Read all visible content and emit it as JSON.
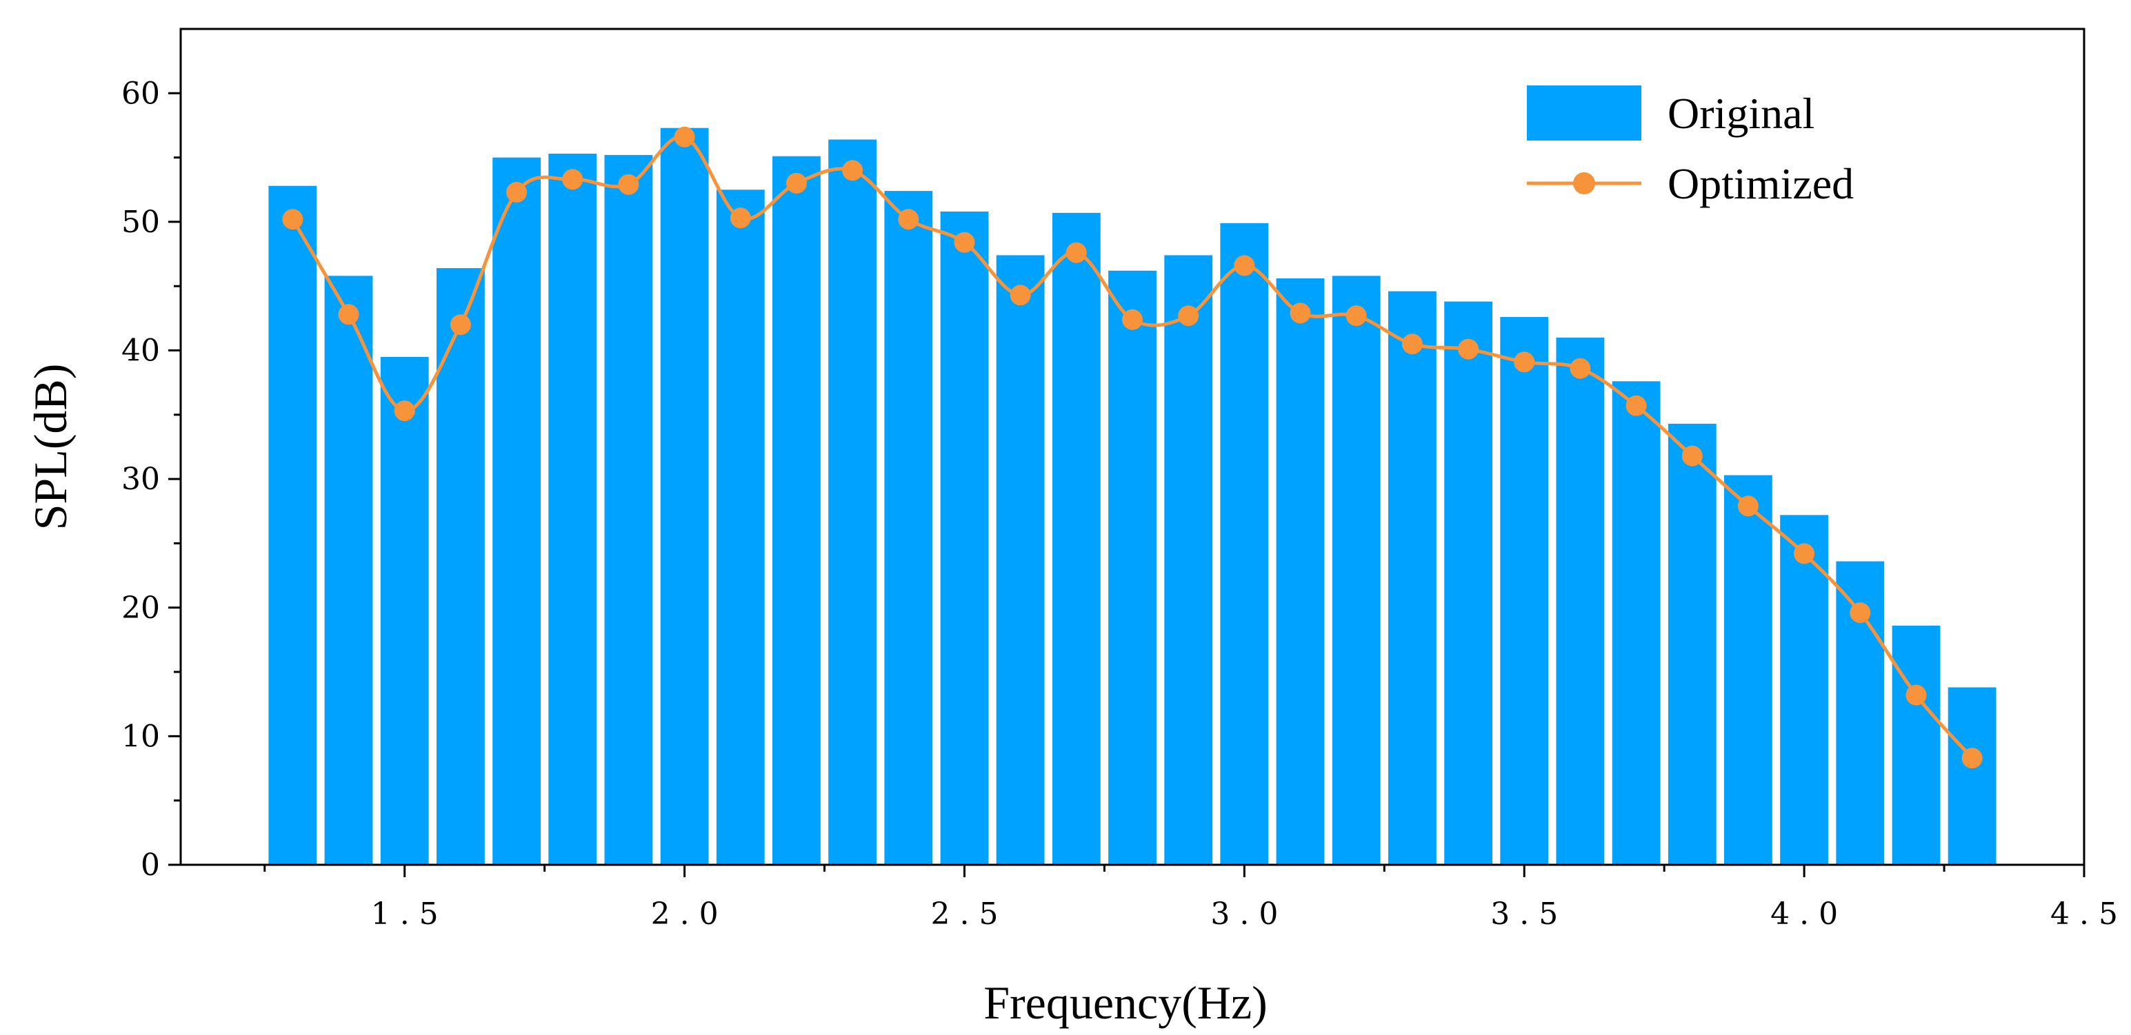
{
  "chart_data": {
    "type": "bar",
    "title": "",
    "xlabel": "Frequency(Hz)",
    "ylabel": "SPL(dB)",
    "xlim": [
      1.1,
      4.5
    ],
    "ylim": [
      0,
      65
    ],
    "x_ticks": [
      1.5,
      2.0,
      2.5,
      3.0,
      3.5,
      4.0,
      4.5
    ],
    "x_tick_labels": [
      "1.5",
      "2.0",
      "2.5",
      "3.0",
      "3.5",
      "4.0",
      "4.5"
    ],
    "y_ticks": [
      0,
      10,
      20,
      30,
      40,
      50,
      60
    ],
    "y_tick_labels": [
      "0",
      "10",
      "20",
      "30",
      "40",
      "50",
      "60"
    ],
    "grid": false,
    "legend_position": "top-right",
    "x": [
      1.3,
      1.4,
      1.5,
      1.6,
      1.7,
      1.8,
      1.9,
      2.0,
      2.1,
      2.2,
      2.3,
      2.4,
      2.5,
      2.6,
      2.7,
      2.8,
      2.9,
      3.0,
      3.1,
      3.2,
      3.3,
      3.4,
      3.5,
      3.6,
      3.7,
      3.8,
      3.9,
      4.0,
      4.1,
      4.2,
      4.3
    ],
    "series": [
      {
        "name": "Original",
        "type": "bar",
        "color": "#00a2ff",
        "values": [
          52.8,
          45.8,
          39.5,
          46.4,
          55.0,
          55.3,
          55.2,
          57.3,
          52.5,
          55.1,
          56.4,
          52.4,
          50.8,
          47.4,
          50.7,
          46.2,
          47.4,
          49.9,
          45.6,
          45.8,
          44.6,
          43.8,
          42.6,
          41.0,
          37.6,
          34.3,
          30.3,
          27.2,
          23.6,
          18.6,
          13.8
        ]
      },
      {
        "name": "Optimized",
        "type": "line",
        "color": "#f7933a",
        "values": [
          50.2,
          42.8,
          35.3,
          42.0,
          52.3,
          53.3,
          52.9,
          56.6,
          50.3,
          53.0,
          54.0,
          50.2,
          48.4,
          44.3,
          47.6,
          42.4,
          42.7,
          46.6,
          42.9,
          42.7,
          40.5,
          40.1,
          39.1,
          38.6,
          35.7,
          31.8,
          27.9,
          24.2,
          19.6,
          13.2,
          8.3
        ]
      }
    ]
  }
}
